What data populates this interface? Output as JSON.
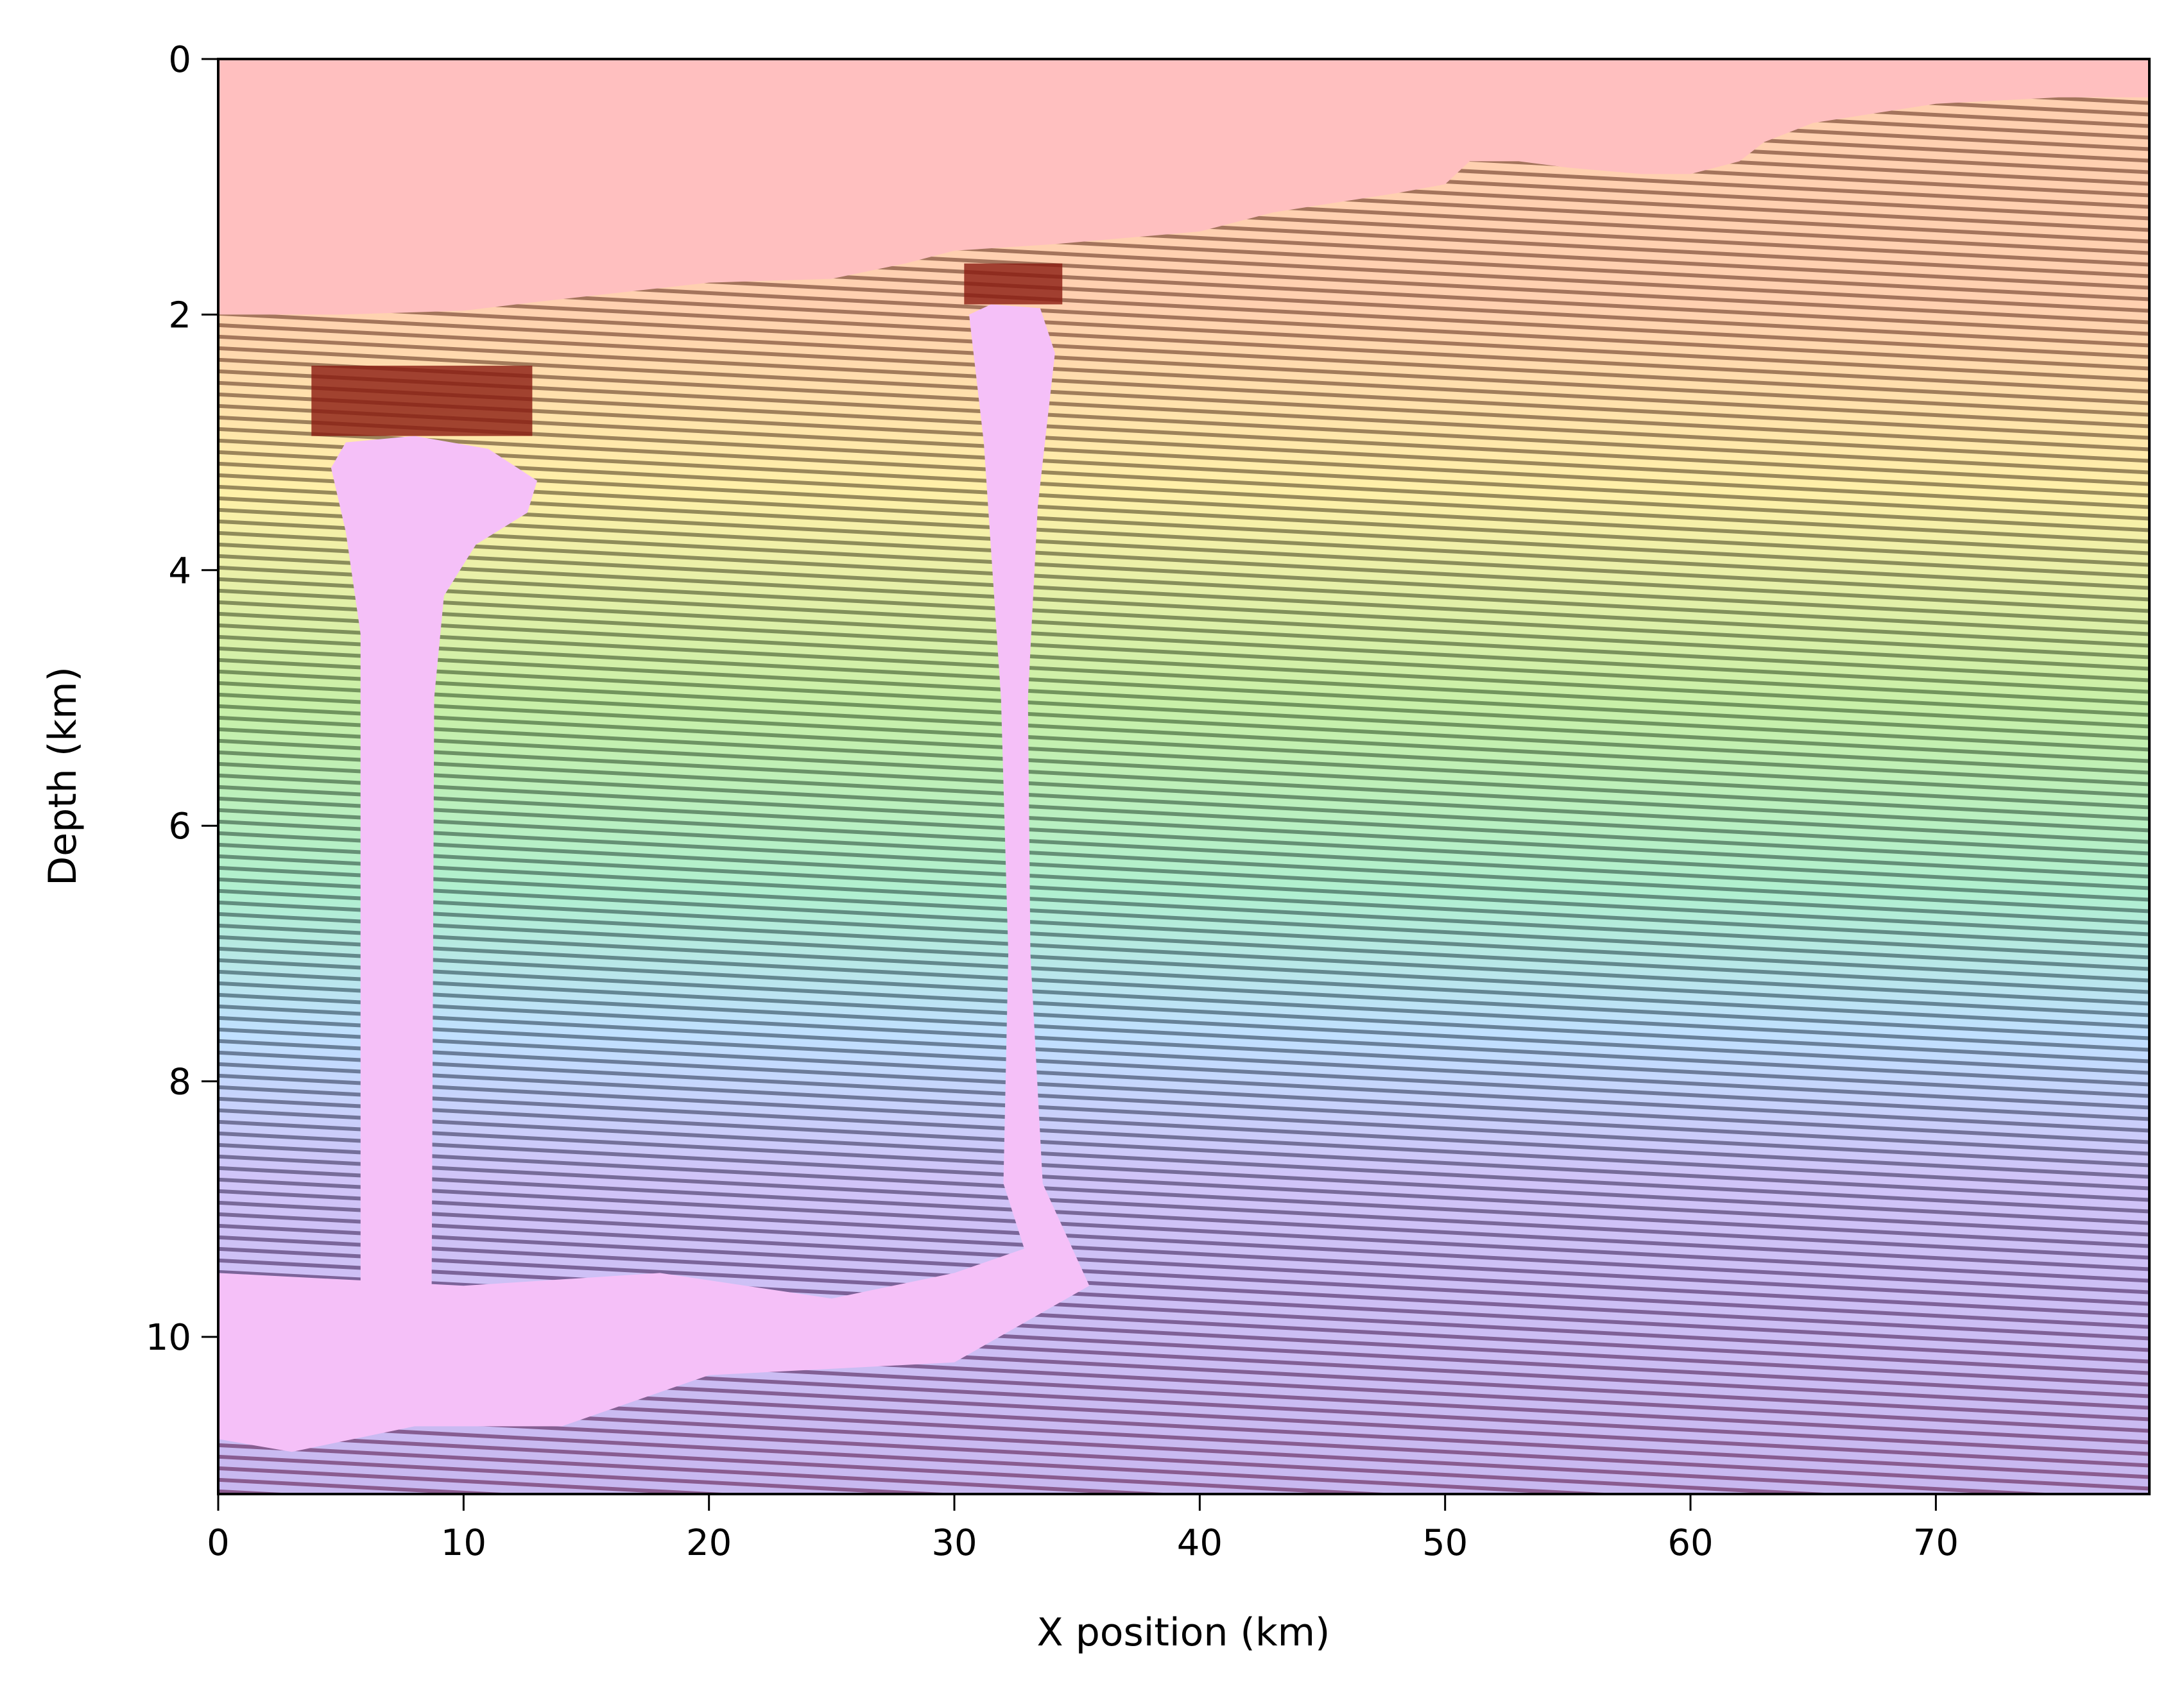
{
  "chart_data": {
    "type": "heatmap",
    "title": "",
    "xlabel": "X position (km)",
    "ylabel": "Depth (km)",
    "xlim": [
      0,
      78.7
    ],
    "ylim": [
      11.23,
      0
    ],
    "xticks": [
      0,
      10,
      20,
      30,
      40,
      50,
      60,
      70
    ],
    "xtick_labels": [
      "0",
      "10",
      "20",
      "30",
      "40",
      "50",
      "60",
      "70"
    ],
    "yticks": [
      0,
      2,
      4,
      6,
      8,
      10
    ],
    "ytick_labels": [
      "0",
      "2",
      "4",
      "6",
      "8",
      "10"
    ],
    "grid": false,
    "description_layers": [
      "seismic image (stripes)",
      "velocity model overlay (colormap)"
    ],
    "seafloor_depth": {
      "x": [
        0,
        5,
        10,
        13,
        20,
        25,
        28,
        30,
        34,
        40,
        43,
        48,
        50,
        51,
        53,
        55,
        58,
        60,
        62,
        63,
        65,
        70,
        75,
        78.7
      ],
      "depth": [
        2.0,
        2.0,
        1.97,
        1.9,
        1.75,
        1.72,
        1.6,
        1.5,
        1.45,
        1.35,
        1.2,
        1.05,
        0.98,
        0.8,
        0.8,
        0.85,
        0.9,
        0.9,
        0.8,
        0.65,
        0.5,
        0.35,
        0.3,
        0.3
      ]
    },
    "colors": {
      "water": "#ffbfbf",
      "salt": "#f5c0f8",
      "shallow": "#ffd8b0",
      "mid": "#c8f0a8",
      "deep": "#c8c0f4"
    }
  }
}
